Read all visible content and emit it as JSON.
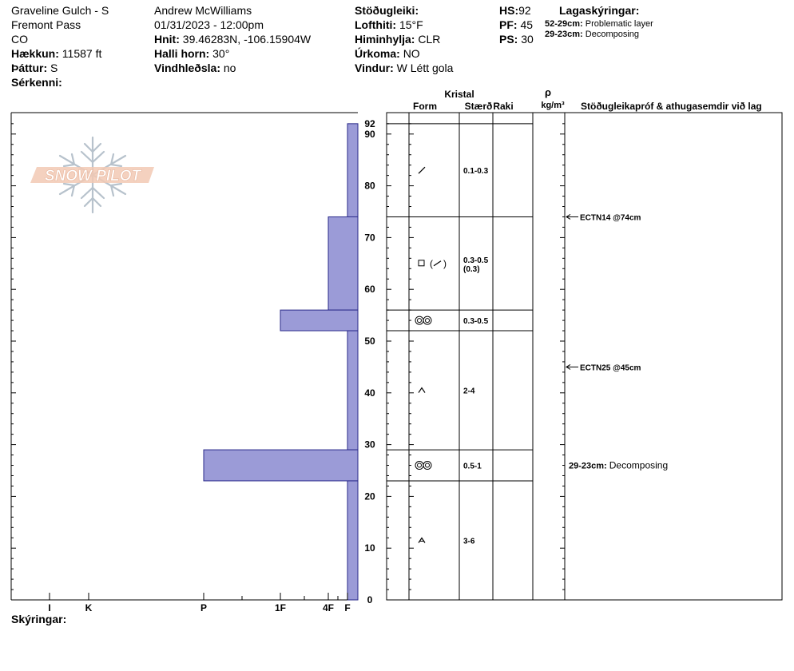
{
  "header": {
    "location": "Graveline Gulch - S",
    "range": "Fremont Pass",
    "state": "CO",
    "elevation_label": "Hækkun:",
    "elevation_value": "11587 ft",
    "aspect_label": "Þáttur:",
    "aspect_value": "S",
    "features_label": "Sérkenni:",
    "observer": "Andrew McWilliams",
    "datetime": "01/31/2023 - 12:00pm",
    "coords_label": "Hnit:",
    "coords_value": "39.46283N, -106.15904W",
    "slope_label": "Halli horn:",
    "slope_value": "30°",
    "wind_loading_label": "Vindhleðsla:",
    "wind_loading_value": "no",
    "stability_label": "Stöðugleiki:",
    "air_temp_label": "Lofthiti:",
    "air_temp_value": "15°F",
    "sky_label": "Himinhylja:",
    "sky_value": "CLR",
    "precip_label": "Úrkoma:",
    "precip_value": "NO",
    "wind_label": "Vindur:",
    "wind_value": "W Létt gola",
    "hs_label": "HS:",
    "hs_value": "92",
    "pf_label": "PF:",
    "pf_value": "45",
    "ps_label": "PS:",
    "ps_value": "30",
    "layers_title": "Lagaskýringar:",
    "layer_notes": [
      {
        "range": "52-29cm:",
        "text": "Problematic layer"
      },
      {
        "range": "29-23cm:",
        "text": "Decomposing"
      }
    ]
  },
  "logo_text": "SNOW PILOT",
  "comments_label": "Skýringar:",
  "columns": {
    "crystal": "Kristal",
    "form": "Form",
    "size": "Stærð",
    "moisture": "Raki",
    "rho": "ρ",
    "density_unit": "kg/m³",
    "tests": "Stöðugleikapróf & athugasemdir við lag"
  },
  "colors": {
    "hardness_fill": "#9b9bd7",
    "hardness_stroke": "#2a2a8a",
    "logo_flake": "#b7c2cc",
    "logo_text": "#f2c9b4"
  },
  "chart_data": {
    "type": "bar",
    "title": "",
    "xlabel": "",
    "ylabel": "",
    "y_unit": "cm",
    "ylim": [
      0,
      92
    ],
    "y_ticks": [
      0,
      10,
      20,
      30,
      40,
      50,
      60,
      70,
      80,
      90
    ],
    "y_top_label": "92",
    "hardness_scale": [
      "I",
      "K",
      "P",
      "1F",
      "4F",
      "F"
    ],
    "hardness_scale_values": {
      "I": 6,
      "K": 5,
      "P": 4,
      "1F": 3,
      "4F": 2,
      "F": 1
    },
    "layers": [
      {
        "top": 92,
        "bottom": 74,
        "hardness": "F",
        "hardness_value": 1,
        "form": "decomposing",
        "size": "0.1-0.3",
        "size_note": ""
      },
      {
        "top": 74,
        "bottom": 56,
        "hardness": "4F",
        "hardness_value": 2,
        "form": "faceted-decomposing",
        "size": "0.3-0.5",
        "size_note": "(0.3)"
      },
      {
        "top": 56,
        "bottom": 52,
        "hardness": "1F",
        "hardness_value": 3,
        "form": "surface-hoar-rounded",
        "size": "0.3-0.5",
        "size_note": ""
      },
      {
        "top": 52,
        "bottom": 29,
        "hardness": "F",
        "hardness_value": 1,
        "form": "depth-hoar",
        "size": "2-4",
        "size_note": ""
      },
      {
        "top": 29,
        "bottom": 23,
        "hardness": "P",
        "hardness_value": 4,
        "form": "surface-hoar-rounded",
        "size": "0.5-1",
        "size_note": ""
      },
      {
        "top": 23,
        "bottom": 0,
        "hardness": "F",
        "hardness_value": 1,
        "form": "depth-hoar-rounding",
        "size": "3-6",
        "size_note": ""
      }
    ],
    "tests": [
      {
        "depth": 74,
        "label": "ECTN14 @74cm"
      },
      {
        "depth": 45,
        "label": "ECTN25 @45cm"
      }
    ],
    "layer_comments": [
      {
        "depth": 26,
        "range": "29-23cm:",
        "text": "Decomposing"
      }
    ]
  }
}
